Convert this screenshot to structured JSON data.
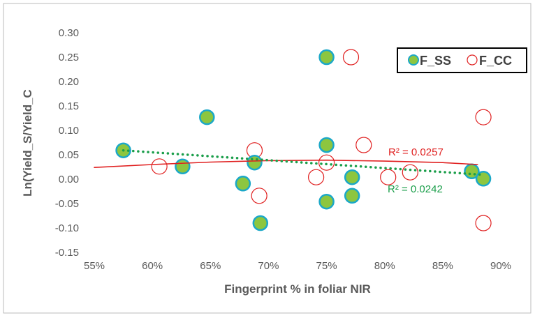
{
  "chart_data": {
    "type": "scatter",
    "xlabel": "Fingerprint  % in foliar NIR",
    "ylabel": "Ln(Yield_S/Yield_C",
    "xlim": [
      55,
      90
    ],
    "ylim": [
      -0.15,
      0.3
    ],
    "x_ticks": [
      "55%",
      "60%",
      "65%",
      "70%",
      "75%",
      "80%",
      "85%",
      "90%"
    ],
    "y_ticks": [
      "0.30",
      "0.25",
      "0.20",
      "0.15",
      "0.10",
      "0.05",
      "0.00",
      "-0.05",
      "-0.10",
      "-0.15"
    ],
    "grid": false,
    "legend_position": "top-right",
    "series": [
      {
        "name": "F_SS",
        "fill": "#8dc63f",
        "stroke": "#1ba8c8",
        "points": [
          [
            57.5,
            0.059
          ],
          [
            62.6,
            0.026
          ],
          [
            64.7,
            0.127
          ],
          [
            67.8,
            -0.009
          ],
          [
            68.8,
            0.034
          ],
          [
            69.3,
            -0.09
          ],
          [
            75,
            0.25
          ],
          [
            75,
            0.07
          ],
          [
            75,
            -0.046
          ],
          [
            77.2,
            0.004
          ],
          [
            77.2,
            -0.034
          ],
          [
            87.5,
            0.016
          ],
          [
            88.5,
            0.001
          ]
        ],
        "trendline": {
          "style": "dotted",
          "color": "#1a9e4a",
          "points": [
            [
              57.5,
              0.059
            ],
            [
              88.5,
              0.009
            ]
          ],
          "label": "R² = 0.0242"
        }
      },
      {
        "name": "F_CC",
        "fill": "none",
        "stroke": "#e02020",
        "points": [
          [
            60.6,
            0.026
          ],
          [
            68.8,
            0.059
          ],
          [
            69.2,
            -0.034
          ],
          [
            74.1,
            0.004
          ],
          [
            75,
            0.034
          ],
          [
            77.1,
            0.25
          ],
          [
            78.2,
            0.07
          ],
          [
            80.3,
            0.004
          ],
          [
            82.2,
            0.014
          ],
          [
            88.5,
            0.127
          ],
          [
            88.5,
            -0.09
          ]
        ],
        "trendline": {
          "style": "solid",
          "color": "#e02020",
          "points": [
            [
              55,
              0.024
            ],
            [
              60,
              0.03
            ],
            [
              65,
              0.035
            ],
            [
              70,
              0.038
            ],
            [
              75,
              0.039
            ],
            [
              80,
              0.037
            ],
            [
              85,
              0.034
            ],
            [
              88,
              0.03
            ]
          ],
          "label": "R² = 0.0257"
        }
      }
    ]
  }
}
